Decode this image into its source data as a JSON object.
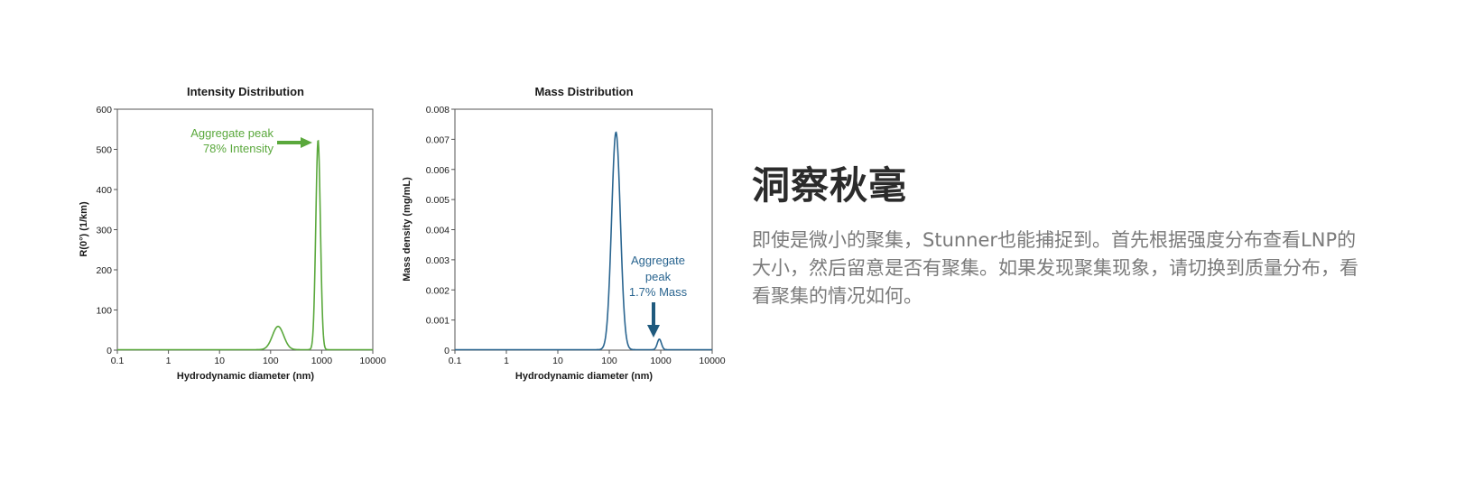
{
  "chart_data": [
    {
      "type": "line",
      "title": "Intensity Distribution",
      "xlabel": "Hydrodynamic diameter (nm)",
      "ylabel": "R(0°) (1/km)",
      "x_scale": "log",
      "xlim": [
        0.1,
        10000
      ],
      "ylim": [
        0,
        600
      ],
      "xticks": [
        "0.1",
        "1",
        "10",
        "100",
        "1000",
        "10000"
      ],
      "yticks": [
        "0",
        "100",
        "200",
        "300",
        "400",
        "500",
        "600"
      ],
      "color": "#5aa83c",
      "peaks": [
        {
          "center": 140,
          "height": 58
        },
        {
          "center": 850,
          "height": 522
        }
      ],
      "annotation": {
        "lines": [
          "Aggregate peak",
          "78% Intensity"
        ],
        "target_x": 850,
        "target_y": 522
      }
    },
    {
      "type": "line",
      "title": "Mass Distribution",
      "xlabel": "Hydrodynamic diameter (nm)",
      "ylabel": "Mass density (mg/mL)",
      "x_scale": "log",
      "xlim": [
        0.1,
        10000
      ],
      "ylim": [
        0,
        0.008
      ],
      "xticks": [
        "0.1",
        "1",
        "10",
        "100",
        "1000",
        "10000"
      ],
      "yticks": [
        "0",
        "0.001",
        "0.002",
        "0.003",
        "0.004",
        "0.005",
        "0.006",
        "0.007",
        "0.008"
      ],
      "color": "#2a6590",
      "peaks": [
        {
          "center": 135,
          "height": 0.00722
        },
        {
          "center": 940,
          "height": 0.00035
        }
      ],
      "annotation": {
        "lines": [
          "Aggregate",
          "peak",
          "1.7% Mass"
        ],
        "target_x": 940,
        "target_y": 0.00035
      }
    }
  ],
  "text_panel": {
    "headline": "洞察秋毫",
    "body": "即使是微小的聚集，Stunner也能捕捉到。首先根据强度分布查看LNP的大小，然后留意是否有聚集。如果发现聚集现象，请切换到质量分布，看看聚集的情况如何。"
  }
}
